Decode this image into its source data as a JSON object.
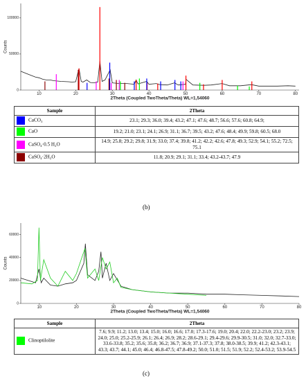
{
  "chart_data": [
    {
      "type": "line",
      "xlabel": "2Theta (Coupled TwoTheta/Theta) WL=1,54060",
      "ylabel": "Counts",
      "xlim": [
        5,
        81
      ],
      "ylim": [
        0,
        120000
      ],
      "xticks": [
        10,
        20,
        30,
        40,
        50,
        60,
        70,
        80
      ],
      "yticks": [
        0,
        50000,
        100000
      ],
      "series": [
        {
          "mark": "line",
          "color": "#222222",
          "x": [
            5,
            7,
            9,
            10,
            11,
            12,
            13,
            14,
            15,
            16,
            18,
            19,
            20,
            20.9,
            21.5,
            22,
            23,
            24,
            25,
            26,
            26.6,
            27.2,
            28,
            29.4,
            30,
            31,
            32,
            34,
            35,
            36,
            36.5,
            37,
            39.4,
            40,
            42,
            43,
            45,
            47,
            48,
            50,
            50.1,
            52,
            55,
            57,
            60,
            62,
            65,
            68,
            70,
            75,
            78,
            80
          ],
          "values": [
            26000,
            22000,
            18000,
            17000,
            15000,
            14000,
            14000,
            13000,
            12500,
            12000,
            11500,
            11000,
            11500,
            30000,
            12000,
            11000,
            14000,
            10500,
            10000,
            11000,
            40000,
            12000,
            14000,
            28000,
            10000,
            9500,
            9000,
            9000,
            8500,
            8000,
            14000,
            8500,
            12000,
            8000,
            9000,
            7500,
            7000,
            10000,
            7000,
            8000,
            15000,
            7000,
            6500,
            7000,
            9000,
            6000,
            6000,
            7500,
            5500,
            5500,
            6000,
            5500
          ]
        },
        {
          "mark": "stick",
          "color": "#ff0000",
          "x": [
            20.9,
            26.6,
            36.5,
            39.5,
            42.4,
            50.1,
            54.9,
            60,
            68.1
          ],
          "values": [
            30000,
            115000,
            14000,
            10000,
            9000,
            20000,
            8000,
            14000,
            12000
          ]
        },
        {
          "mark": "stick",
          "color": "#0000ff",
          "x": [
            23.1,
            29.3,
            36.0,
            39.4,
            43.2,
            47.1,
            48.7
          ],
          "values": [
            10000,
            38000,
            12000,
            16000,
            12000,
            14000,
            12000
          ]
        },
        {
          "mark": "stick",
          "color": "#00ff00",
          "x": [
            32.2,
            37.4,
            53.9,
            64.2,
            67.4
          ],
          "values": [
            12000,
            16000,
            10000,
            6000,
            5000
          ]
        },
        {
          "mark": "stick",
          "color": "#ff00ff",
          "x": [
            14.7,
            25.6,
            29.7,
            31.9,
            49.3
          ],
          "values": [
            22000,
            12000,
            10000,
            14000,
            12000
          ]
        },
        {
          "mark": "stick",
          "color": "#8b0000",
          "x": [
            11.6,
            20.7,
            29.1,
            31.1,
            33.4
          ],
          "values": [
            12000,
            28000,
            16000,
            14000,
            10000
          ]
        }
      ]
    },
    {
      "type": "line",
      "xlabel": "2Theta (Coupled TwoTheta/Theta) WL=1,54060",
      "ylabel": "Counts",
      "xlim": [
        5,
        80
      ],
      "ylim": [
        0,
        70000
      ],
      "xticks": [
        10,
        20,
        30,
        40,
        50,
        60,
        70,
        80
      ],
      "yticks": [
        0,
        20000,
        40000,
        60000
      ],
      "series": [
        {
          "mark": "line",
          "color": "#222222",
          "x": [
            5,
            7,
            8,
            9,
            9.9,
            10.5,
            11.2,
            13,
            15,
            17,
            19,
            20,
            22,
            22.4,
            23,
            25,
            26,
            26.6,
            27,
            28,
            29,
            30,
            32,
            35,
            40,
            45,
            50,
            55,
            60,
            65,
            70,
            75,
            80
          ],
          "values": [
            22000,
            20000,
            19000,
            18000,
            30000,
            18000,
            22000,
            16000,
            15000,
            17000,
            18000,
            20000,
            35000,
            52000,
            25000,
            20000,
            28000,
            45000,
            22000,
            35000,
            20000,
            26000,
            15000,
            12000,
            10000,
            9000,
            9000,
            8000,
            8000,
            7500,
            7000,
            6500,
            6000
          ]
        },
        {
          "mark": "line",
          "color": "#22cc22",
          "x": [
            5,
            8,
            9.5,
            9.9,
            10.3,
            11.2,
            13,
            15,
            17,
            19,
            20,
            22.3,
            23,
            25,
            26,
            27,
            28,
            29,
            30,
            31,
            32,
            35,
            40,
            45,
            50,
            55
          ],
          "values": [
            18000,
            17000,
            20000,
            66000,
            20000,
            38000,
            22000,
            15000,
            28000,
            20000,
            26000,
            48000,
            22000,
            30000,
            20000,
            40000,
            30000,
            36000,
            18000,
            22000,
            14000,
            12000,
            10000,
            9000,
            8000,
            7000
          ]
        }
      ]
    }
  ],
  "tables": [
    {
      "header": [
        "Sample",
        "2Theta"
      ],
      "rows": [
        {
          "color": "#0000ff",
          "cells": [
            "CaCO₃",
            "23.1; 29.3; 36.0; 39.4; 43.2; 47.1; 47.6; 48.7; 56.6; 57.6; 60.8; 64.9;"
          ]
        },
        {
          "color": "#00ff00",
          "cells": [
            "CaO",
            "19.2; 21.0; 23.1; 24.1; 26.9; 31.1; 36.7; 39.5; 43.2; 47.6; 48.4; 49.9; 59.8; 60.5; 68.0"
          ]
        },
        {
          "color": "#ff00ff",
          "cells": [
            "CaSO₄·0.5 H₂O",
            "14.9; 25.8; 29.2; 29.8; 31.9; 33.0; 37.4; 39.8; 41.2; 42.2; 42.6; 47.8; 49.3; 52.9; 54.1; 55.2; 72.5; 75.1"
          ]
        },
        {
          "color": "#8b0000",
          "cells": [
            "CaSO₄·2H₂O",
            "11.8; 20.9; 29.1; 31.1; 33.4; 43.2-43.7; 47.9"
          ]
        }
      ]
    },
    {
      "header": [
        "Sample",
        "2Theta"
      ],
      "rows": [
        {
          "color": "#00ff00",
          "cells": [
            "Clinoptilolite",
            "7.6; 9.9; 11.2; 13.0; 13.4; 15.0; 16.0; 16.6; 17.0; 17.3-17.6; 19.0; 20.4; 22.0; 22.2-23.0; 23.2; 23.9; 24.0; 25.0; 25.2-25.9; 26.1; 26.4; 26.9; 28.2; 28.6-29.1; 29.4-29.6; 29.9-30.5; 31.0; 32.0; 32.7-33.0; 33.6-33.8; 35.2; 35.6; 35.8; 36.2; 36.7; 36.9; 37.1-37.3; 37.8; 38.0-38.5; 39.9; 41.2; 42.3-43.1; 43.3; 43.7; 44.1; 45.0; 46.4; 46.8-47.5; 47.8-49.2; 50.0; 51.0; 51.5; 51.9; 52.2; 52.4-53.2; 53.9-54.5"
          ]
        }
      ]
    }
  ],
  "captions": [
    "(b)",
    "(c)"
  ]
}
